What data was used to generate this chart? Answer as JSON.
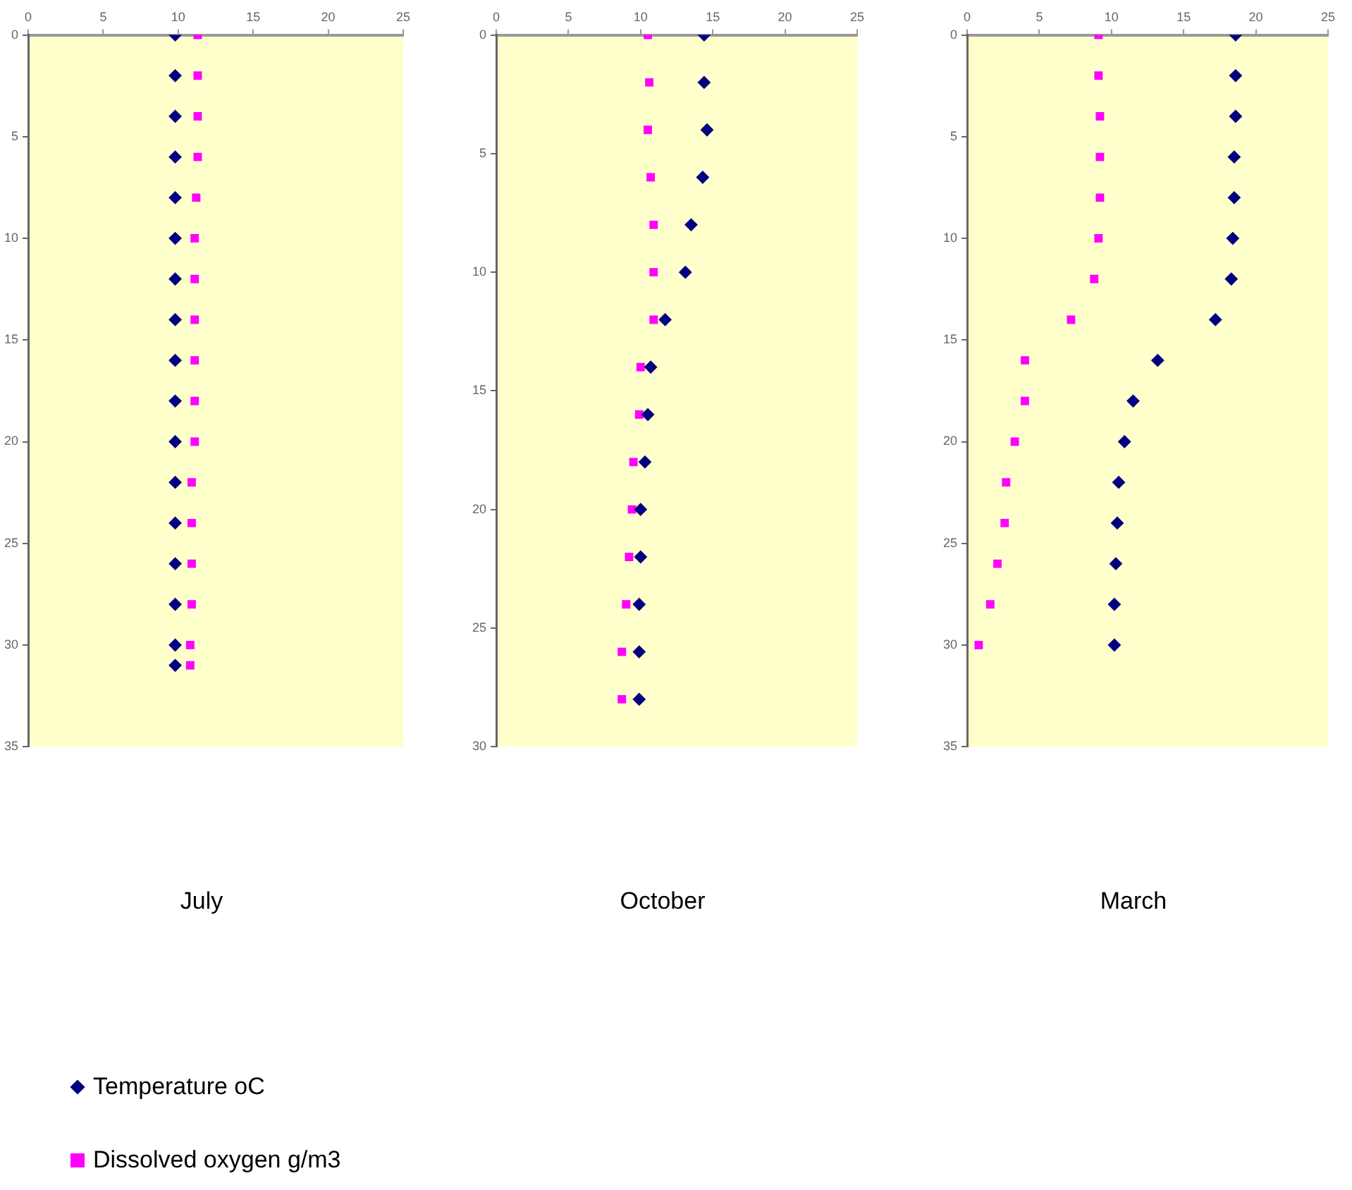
{
  "chart_data": [
    {
      "type": "scatter",
      "title": "July",
      "xlim": [
        0,
        25
      ],
      "xticks": [
        0,
        5,
        10,
        15,
        20,
        25
      ],
      "ylim": [
        35,
        0
      ],
      "yticks": [
        0,
        5,
        10,
        15,
        20,
        25,
        30,
        35
      ],
      "grid": false,
      "legend": "bottom",
      "series": [
        {
          "name": "Temperature oC",
          "color": "#000080",
          "marker": "diamond",
          "x": [
            9.8,
            9.8,
            9.8,
            9.8,
            9.8,
            9.8,
            9.8,
            9.8,
            9.8,
            9.8,
            9.8,
            9.8,
            9.8,
            9.8,
            9.8,
            9.8,
            9.8
          ],
          "values": [
            0,
            2,
            4,
            6,
            8,
            10,
            12,
            14,
            16,
            18,
            20,
            22,
            24,
            26,
            28,
            30,
            31
          ]
        },
        {
          "name": "Dissolved oxygen g/m3",
          "color": "#ff00ff",
          "marker": "square",
          "x": [
            11.3,
            11.3,
            11.3,
            11.3,
            11.2,
            11.1,
            11.1,
            11.1,
            11.1,
            11.1,
            11.1,
            10.9,
            10.9,
            10.9,
            10.9,
            10.8,
            10.8
          ],
          "values": [
            0,
            2,
            4,
            6,
            8,
            10,
            12,
            14,
            16,
            18,
            20,
            22,
            24,
            26,
            28,
            30,
            31
          ]
        }
      ]
    },
    {
      "type": "scatter",
      "title": "October",
      "xlim": [
        0,
        25
      ],
      "xticks": [
        0,
        5,
        10,
        15,
        20,
        25
      ],
      "ylim": [
        30,
        0
      ],
      "yticks": [
        0,
        5,
        10,
        15,
        20,
        25,
        30
      ],
      "grid": false,
      "series": [
        {
          "color": "#000080",
          "marker": "diamond",
          "x": [
            14.4,
            14.4,
            14.6,
            14.3,
            13.5,
            13.1,
            11.7,
            10.7,
            10.5,
            10.3,
            10.0,
            10.0,
            9.9,
            9.9,
            9.9
          ],
          "values": [
            0,
            2,
            4,
            6,
            8,
            10,
            12,
            14,
            16,
            18,
            20,
            22,
            24,
            26,
            28
          ]
        },
        {
          "color": "#ff00ff",
          "marker": "square",
          "x": [
            10.5,
            10.6,
            10.5,
            10.7,
            10.9,
            10.9,
            10.9,
            10.0,
            9.9,
            9.5,
            9.4,
            9.2,
            9.0,
            8.7,
            8.7
          ],
          "values": [
            0,
            2,
            4,
            6,
            8,
            10,
            12,
            14,
            16,
            18,
            20,
            22,
            24,
            26,
            28
          ]
        }
      ]
    },
    {
      "type": "scatter",
      "title": "March",
      "xlim": [
        0,
        25
      ],
      "xticks": [
        0,
        5,
        10,
        15,
        20,
        25
      ],
      "ylim": [
        35,
        0
      ],
      "yticks": [
        0,
        5,
        10,
        15,
        20,
        25,
        30,
        35
      ],
      "grid": false,
      "series": [
        {
          "color": "#000080",
          "marker": "diamond",
          "x": [
            18.6,
            18.6,
            18.6,
            18.5,
            18.5,
            18.4,
            18.3,
            17.2,
            13.2,
            11.5,
            10.9,
            10.5,
            10.4,
            10.3,
            10.2,
            10.2
          ],
          "values": [
            0,
            2,
            4,
            6,
            8,
            10,
            12,
            14,
            16,
            18,
            20,
            22,
            24,
            26,
            28,
            30
          ]
        },
        {
          "color": "#ff00ff",
          "marker": "square",
          "x": [
            9.1,
            9.1,
            9.2,
            9.2,
            9.2,
            9.1,
            8.8,
            7.2,
            4.0,
            4.0,
            3.3,
            2.7,
            2.6,
            2.1,
            1.6,
            0.8
          ],
          "values": [
            0,
            2,
            4,
            6,
            8,
            10,
            12,
            14,
            16,
            18,
            20,
            22,
            24,
            26,
            28,
            30
          ]
        }
      ]
    }
  ]
}
